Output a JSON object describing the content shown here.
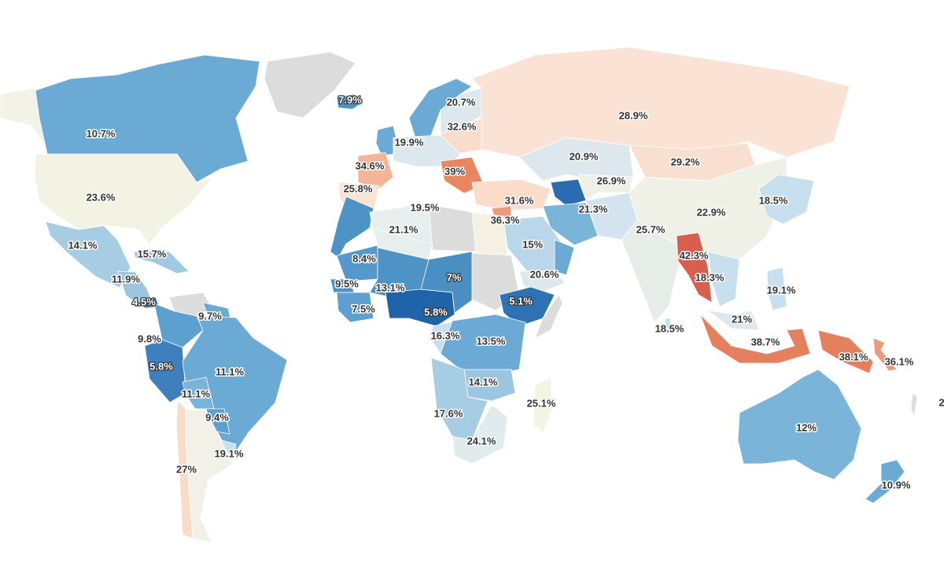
{
  "map": {
    "colors": {
      "no_data": "#dcdcdc",
      "neutral": "#f2f2e6"
    },
    "regions": [
      {
        "id": "alaska-yukon",
        "label": "",
        "color": "#f2f2e6"
      },
      {
        "id": "canada",
        "label": "10.7%",
        "color": "#6aaad4"
      },
      {
        "id": "usa",
        "label": "23.6%",
        "color": "#f3f3e4"
      },
      {
        "id": "greenland",
        "label": "",
        "color": "#dcdcdc"
      },
      {
        "id": "iceland",
        "label": "7.9%",
        "color": "#4d93c6"
      },
      {
        "id": "mexico",
        "label": "14.1%",
        "color": "#a6cde4"
      },
      {
        "id": "central-america",
        "label": "11.9%",
        "color": "#9cc6e0"
      },
      {
        "id": "caribbean",
        "label": "15.7%",
        "color": "#9fc9e2"
      },
      {
        "id": "panama",
        "label": "4.5%",
        "color": "#3b7fbc"
      },
      {
        "id": "venezuela",
        "label": "",
        "color": "#dcdcdc"
      },
      {
        "id": "guyana",
        "label": "9.7%",
        "color": "#6aaad4"
      },
      {
        "id": "colombia",
        "label": "9.8%",
        "color": "#5ca0cf"
      },
      {
        "id": "peru",
        "label": "5.8%",
        "color": "#3e7fbd"
      },
      {
        "id": "brazil",
        "label": "11.1%",
        "color": "#6aaad4"
      },
      {
        "id": "bolivia",
        "label": "11.1%",
        "color": "#7ab5d9"
      },
      {
        "id": "paraguay",
        "label": "9.4%",
        "color": "#5ca0cf"
      },
      {
        "id": "uruguay",
        "label": "19.1%",
        "color": "#c8dff0"
      },
      {
        "id": "argentina",
        "label": "27%",
        "color": "#f1f1e8"
      },
      {
        "id": "chile",
        "label": "",
        "color": "#f8dcc8"
      },
      {
        "id": "uk",
        "label": "",
        "color": "#6aaad4"
      },
      {
        "id": "scandinavia",
        "label": "",
        "color": "#6aaad4"
      },
      {
        "id": "finland-sweden",
        "label": "20.7%",
        "color": "#dce8ee"
      },
      {
        "id": "baltics-belarus",
        "label": "32.6%",
        "color": "#f8ddcc"
      },
      {
        "id": "central-europe",
        "label": "19.9%",
        "color": "#dce8ee"
      },
      {
        "id": "france",
        "label": "34.6%",
        "color": "#f4b496"
      },
      {
        "id": "iberia",
        "label": "25.8%",
        "color": "#fae3d3"
      },
      {
        "id": "balkans",
        "label": "39%",
        "color": "#e9855f"
      },
      {
        "id": "russia",
        "label": "28.9%",
        "color": "#fae3d5"
      },
      {
        "id": "turkey",
        "label": "31.6%",
        "color": "#fbdccb"
      },
      {
        "id": "kazakhstan",
        "label": "20.9%",
        "color": "#dce8ee"
      },
      {
        "id": "turkmenistan",
        "label": "",
        "color": "#2b6cb0"
      },
      {
        "id": "uzbekistan-kyrgyz",
        "label": "26.9%",
        "color": "#eef0e8"
      },
      {
        "id": "afghanistan-pakistan",
        "label": "21.3%",
        "color": "#d3e4f0"
      },
      {
        "id": "iran",
        "label": "",
        "color": "#7ab5d9"
      },
      {
        "id": "mongolia",
        "label": "29.2%",
        "color": "#f9dfcf"
      },
      {
        "id": "china",
        "label": "22.9%",
        "color": "#eff1e6"
      },
      {
        "id": "korea-japan",
        "label": "18.5%",
        "color": "#c8dff0"
      },
      {
        "id": "india",
        "label": "25.7%",
        "color": "#e6ece6"
      },
      {
        "id": "myanmar",
        "label": "42.3%",
        "color": "#d6604d"
      },
      {
        "id": "thailand-vietnam",
        "label": "18.3%",
        "color": "#c8dff0"
      },
      {
        "id": "philippines",
        "label": "19.1%",
        "color": "#c8dff0"
      },
      {
        "id": "malaysia",
        "label": "21%",
        "color": "#dce8ee"
      },
      {
        "id": "indonesia",
        "label": "38.7%",
        "color": "#e5805e"
      },
      {
        "id": "papua",
        "label": "38.1%",
        "color": "#e5805e"
      },
      {
        "id": "solomon",
        "label": "36.1%",
        "color": "#eb9a7c"
      },
      {
        "id": "sri-lanka",
        "label": "18.5%",
        "color": "#c8dff0"
      },
      {
        "id": "australia",
        "label": "12%",
        "color": "#7ab5d9"
      },
      {
        "id": "new-zealand",
        "label": "10.9%",
        "color": "#6aaad4"
      },
      {
        "id": "levant",
        "label": "36.3%",
        "color": "#eb9a7c"
      },
      {
        "id": "saudi-arabia",
        "label": "15%",
        "color": "#b9d6ea"
      },
      {
        "id": "yemen-oman",
        "label": "20.6%",
        "color": "#dce8ee"
      },
      {
        "id": "oman",
        "label": "",
        "color": "#6aaad4"
      },
      {
        "id": "morocco",
        "label": "",
        "color": "#4d93c6"
      },
      {
        "id": "algeria",
        "label": "19.5%",
        "color": "#e6eeee"
      },
      {
        "id": "mali-north",
        "label": "21.1%",
        "color": "#e6eeee"
      },
      {
        "id": "libya",
        "label": "",
        "color": "#dcdcdc"
      },
      {
        "id": "egypt",
        "label": "",
        "color": "#f4f1e2"
      },
      {
        "id": "sudan",
        "label": "",
        "color": "#dcdcdc"
      },
      {
        "id": "mauritania",
        "label": "8.4%",
        "color": "#5598cb"
      },
      {
        "id": "senegal",
        "label": "9.5%",
        "color": "#4d93c6"
      },
      {
        "id": "guinea",
        "label": "7.5%",
        "color": "#5ca0cf"
      },
      {
        "id": "burkina-mali",
        "label": "13.1%",
        "color": "#4d93c6"
      },
      {
        "id": "nigeria",
        "label": "5.8%",
        "color": "#1f63a8"
      },
      {
        "id": "niger-chad",
        "label": "7%",
        "color": "#4a8fc4"
      },
      {
        "id": "ethiopia",
        "label": "5.1%",
        "color": "#2f72b4"
      },
      {
        "id": "gabon-congo",
        "label": "16.3%",
        "color": "#c8dff0"
      },
      {
        "id": "drc-east-africa",
        "label": "13.5%",
        "color": "#6aaad4"
      },
      {
        "id": "zambia-malawi",
        "label": "14.1%",
        "color": "#9cc6e0"
      },
      {
        "id": "angola-namibia",
        "label": "17.6%",
        "color": "#a6cde4"
      },
      {
        "id": "south-africa",
        "label": "24.1%",
        "color": "#e0ebec"
      },
      {
        "id": "madagascar",
        "label": "25.1%",
        "color": "#f4f4e2"
      },
      {
        "id": "somalia",
        "label": "",
        "color": "#dcdcdc"
      },
      {
        "id": "pacific-edge",
        "label": "2",
        "color": "#dcdcdc"
      }
    ]
  }
}
